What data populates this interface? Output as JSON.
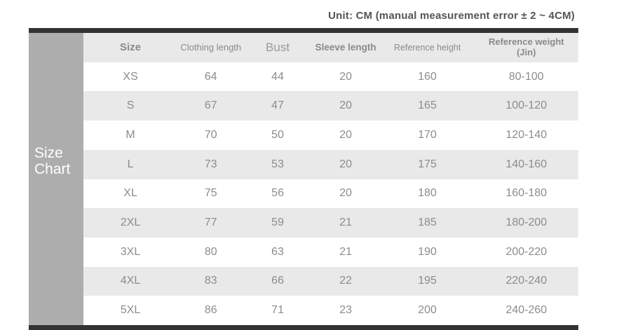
{
  "title": "Unit: CM (manual measurement error ± 2 ~ 4CM)",
  "sidebar": {
    "line1": "Size",
    "line2": "Chart"
  },
  "table": {
    "headers": [
      "Size",
      "Clothing length",
      "Bust",
      "Sleeve length",
      "Reference height",
      "Reference weight (Jin)"
    ],
    "header_weight": {
      "line1": "Reference weight",
      "line2": "(Jin)"
    },
    "rows": [
      [
        "XS",
        "64",
        "44",
        "20",
        "160",
        "80-100"
      ],
      [
        "S",
        "67",
        "47",
        "20",
        "165",
        "100-120"
      ],
      [
        "M",
        "70",
        "50",
        "20",
        "170",
        "120-140"
      ],
      [
        "L",
        "73",
        "53",
        "20",
        "175",
        "140-160"
      ],
      [
        "XL",
        "75",
        "56",
        "20",
        "180",
        "160-180"
      ],
      [
        "2XL",
        "77",
        "59",
        "21",
        "185",
        "180-200"
      ],
      [
        "3XL",
        "80",
        "63",
        "21",
        "190",
        "200-220"
      ],
      [
        "4XL",
        "83",
        "66",
        "22",
        "195",
        "220-240"
      ],
      [
        "5XL",
        "86",
        "71",
        "23",
        "200",
        "240-260"
      ]
    ]
  },
  "colors": {
    "bar": "#333333",
    "sidebar_bg": "#adadad",
    "stripe_bg": "#e9e9e9",
    "header_bg": "#e9e9e9",
    "data_text": "#8c8c8c",
    "header_text": "#8a8a8a",
    "title_text": "#555555",
    "sidebar_text": "#ffffff"
  },
  "chart_data": {
    "type": "table",
    "title": "Unit: CM (manual measurement error ± 2 ~ 4CM)",
    "columns": [
      "Size",
      "Clothing length",
      "Bust",
      "Sleeve length",
      "Reference height",
      "Reference weight (Jin)"
    ],
    "rows": [
      [
        "XS",
        64,
        44,
        20,
        160,
        "80-100"
      ],
      [
        "S",
        67,
        47,
        20,
        165,
        "100-120"
      ],
      [
        "M",
        70,
        50,
        20,
        170,
        "120-140"
      ],
      [
        "L",
        73,
        53,
        20,
        175,
        "140-160"
      ],
      [
        "XL",
        75,
        56,
        20,
        180,
        "160-180"
      ],
      [
        "2XL",
        77,
        59,
        21,
        185,
        "180-200"
      ],
      [
        "3XL",
        80,
        63,
        21,
        190,
        "200-220"
      ],
      [
        "4XL",
        83,
        66,
        22,
        195,
        "220-240"
      ],
      [
        "5XL",
        86,
        71,
        23,
        200,
        "240-260"
      ]
    ],
    "layout_hints": {
      "side_label": "Size Chart",
      "striped_rows": true,
      "units": "CM"
    }
  }
}
